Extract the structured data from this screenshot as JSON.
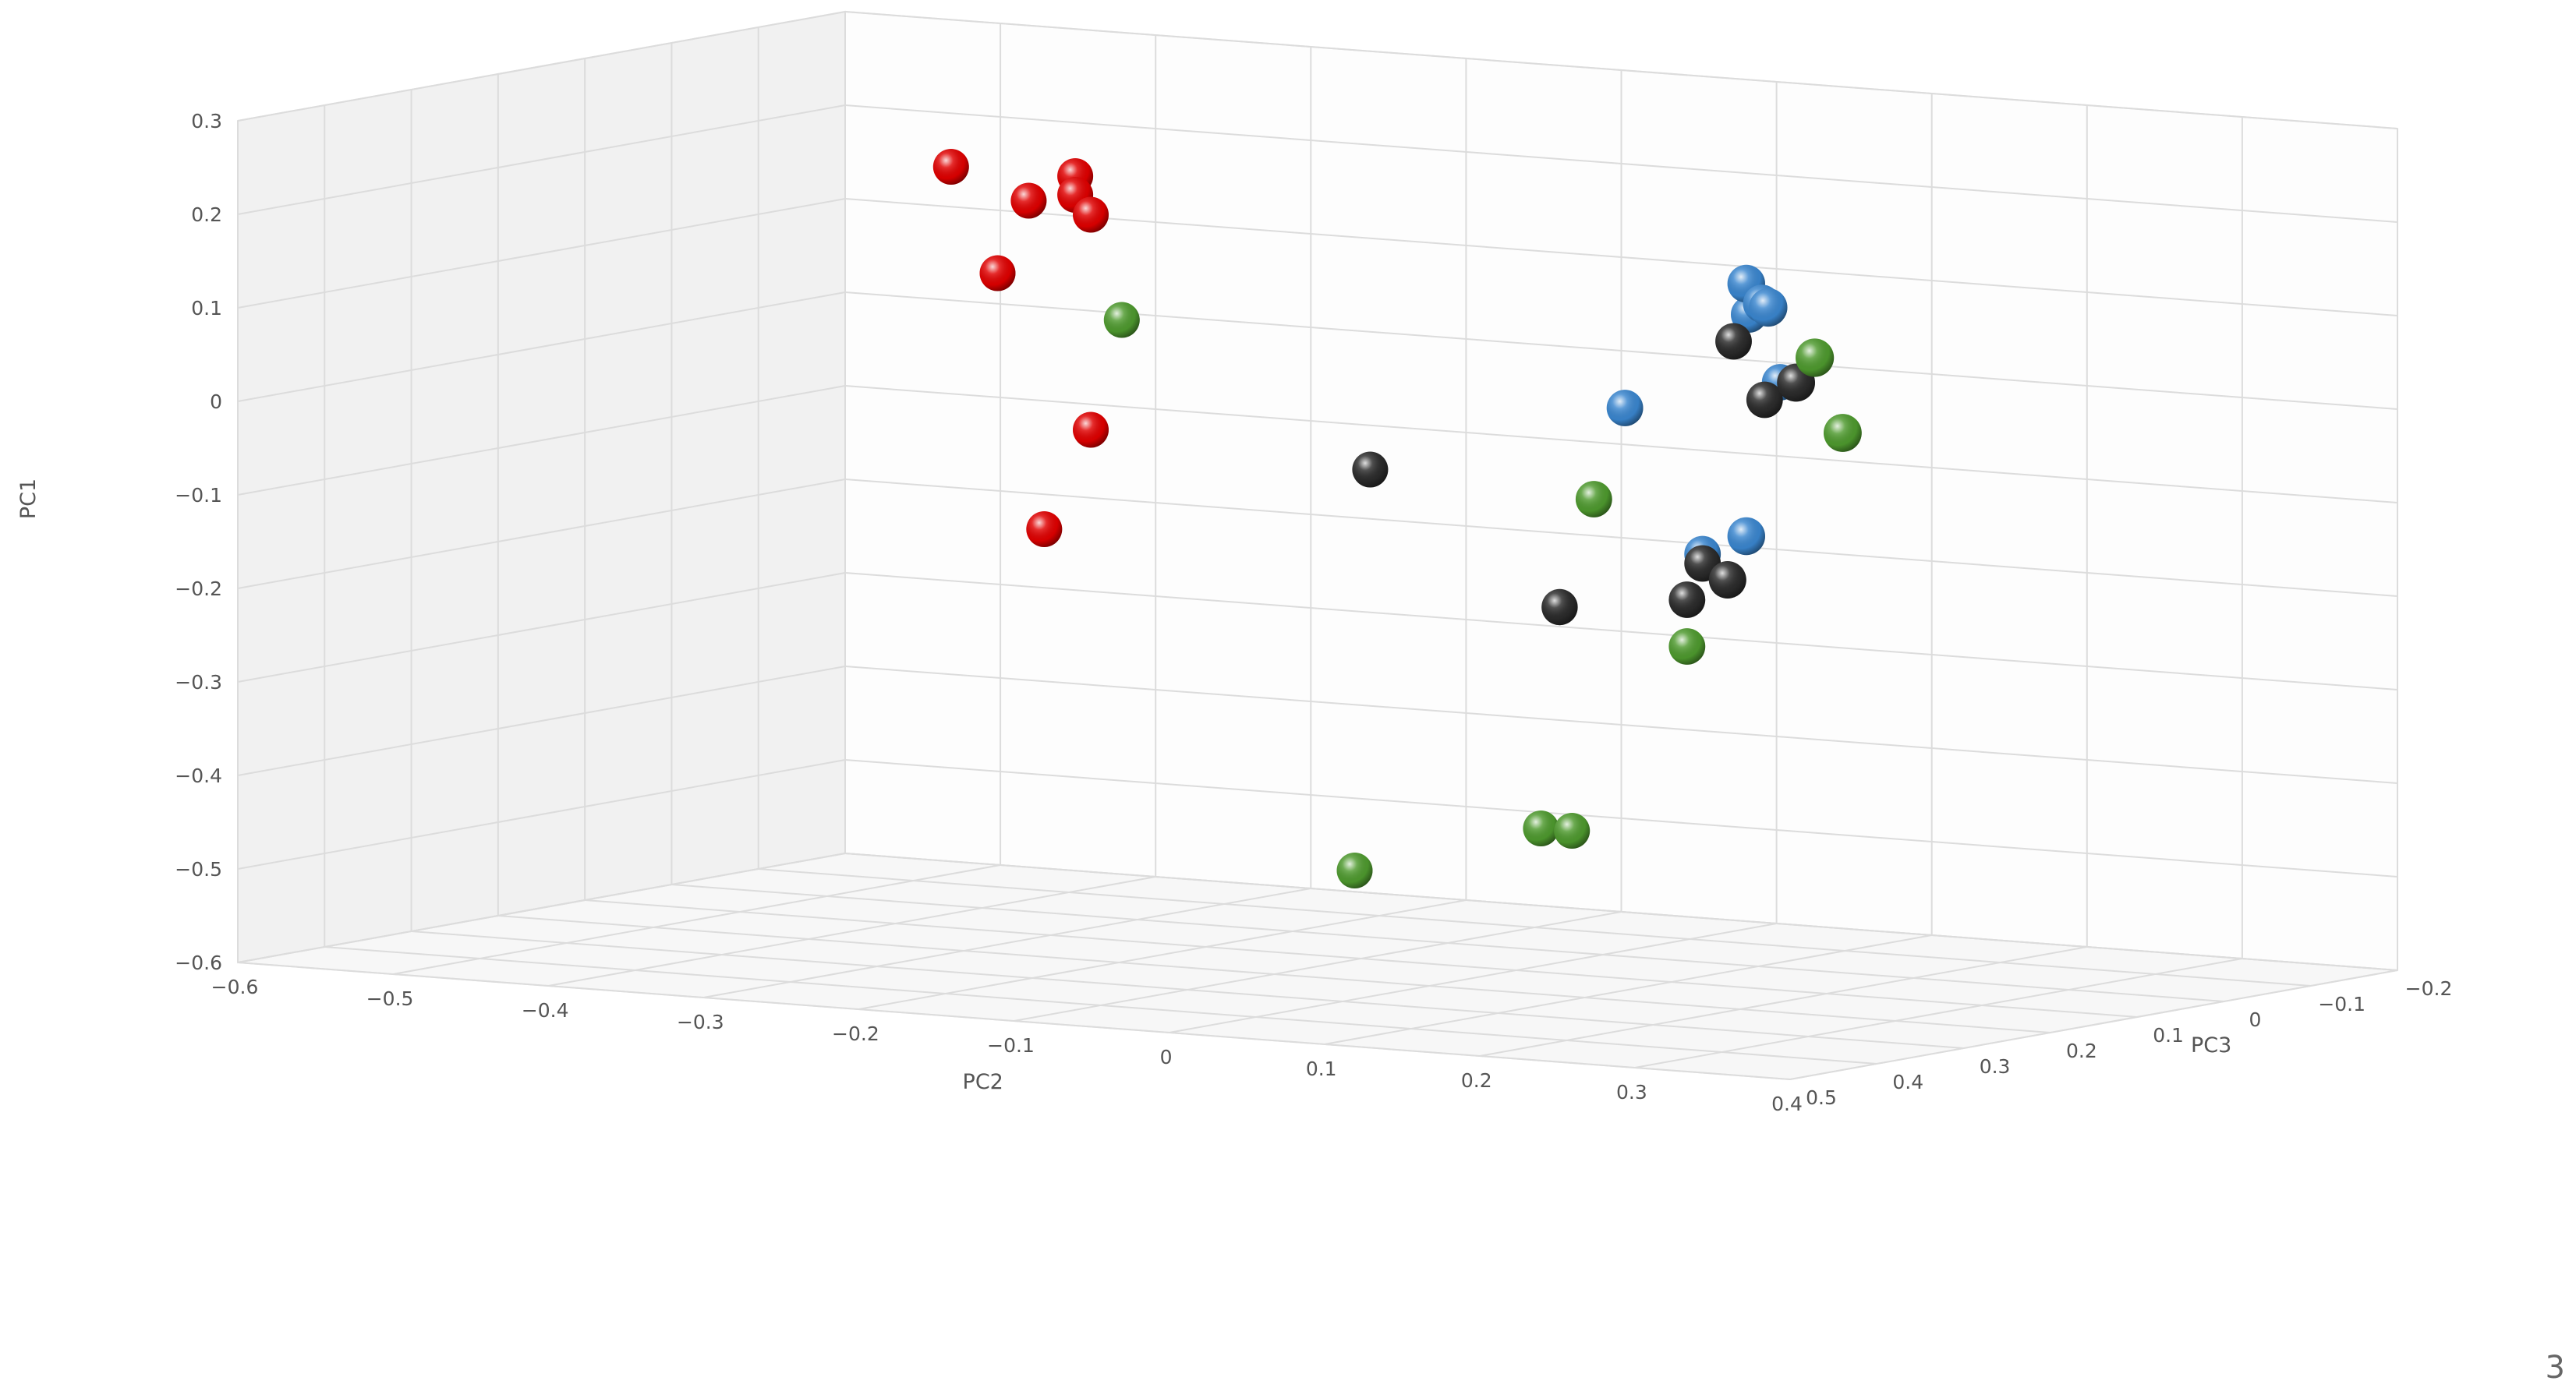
{
  "chart_data": {
    "type": "scatter",
    "subtype": "3d-scatter",
    "title": "",
    "axes": {
      "y": {
        "label": "PC1",
        "range": [
          -0.6,
          0.3
        ],
        "ticks": [
          "0.3",
          "0.2",
          "0.1",
          "0",
          "−0.1",
          "−0.2",
          "−0.3",
          "−0.4",
          "−0.5",
          "−0.6"
        ]
      },
      "x": {
        "label": "PC2",
        "range": [
          -0.6,
          0.4
        ],
        "ticks": [
          "−0.6",
          "−0.5",
          "−0.4",
          "−0.3",
          "−0.2",
          "−0.1",
          "0",
          "0.1",
          "0.2",
          "0.3",
          "0.4"
        ]
      },
      "z": {
        "label": "PC3",
        "range": [
          -0.2,
          0.5
        ],
        "ticks": [
          "−0.2",
          "−0.1",
          "0",
          "0.1",
          "0.2",
          "0.3",
          "0.4",
          "0.5"
        ]
      }
    },
    "grid": true,
    "legend": "none",
    "series": [
      {
        "color": "#e00000",
        "points": [
          [
            -0.42,
            0.19,
            0.0
          ],
          [
            -0.34,
            0.19,
            0.0
          ],
          [
            -0.34,
            0.17,
            0.0
          ],
          [
            -0.37,
            0.16,
            0.0
          ],
          [
            -0.33,
            0.15,
            0.0
          ],
          [
            -0.39,
            0.08,
            0.0
          ],
          [
            -0.33,
            -0.08,
            0.0
          ],
          [
            -0.36,
            -0.19,
            0.0
          ]
        ]
      },
      {
        "color": "#3a86cf",
        "points": [
          [
            0.07,
            0.01,
            0.1
          ],
          [
            0.15,
            0.12,
            0.1
          ],
          [
            0.17,
            0.05,
            0.1
          ],
          [
            0.26,
            0.2,
            0.3
          ],
          [
            0.27,
            0.18,
            0.3
          ],
          [
            0.33,
            0.2,
            0.4
          ],
          [
            0.26,
            -0.07,
            0.3
          ],
          [
            0.12,
            -0.14,
            0.1
          ]
        ]
      },
      {
        "color": "#2b2b2b",
        "points": [
          [
            -0.15,
            -0.1,
            0.0
          ],
          [
            0.0,
            -0.22,
            0.05
          ],
          [
            0.14,
            0.09,
            0.1
          ],
          [
            0.16,
            0.03,
            0.1
          ],
          [
            0.12,
            -0.15,
            0.1
          ],
          [
            0.11,
            -0.19,
            0.1
          ],
          [
            0.32,
            0.11,
            0.35
          ],
          [
            0.22,
            -0.13,
            0.25
          ]
        ]
      },
      {
        "color": "#4e9a2e",
        "points": [
          [
            -0.31,
            0.04,
            0.0
          ],
          [
            0.05,
            -0.09,
            0.1
          ],
          [
            0.11,
            -0.24,
            0.1
          ],
          [
            0.36,
            0.15,
            0.4
          ],
          [
            0.35,
            0.06,
            0.35
          ],
          [
            -0.04,
            -0.47,
            0.0
          ],
          [
            -0.02,
            -0.47,
            0.0
          ],
          [
            -0.16,
            -0.53,
            0.0
          ]
        ]
      }
    ]
  },
  "page_number": "3"
}
